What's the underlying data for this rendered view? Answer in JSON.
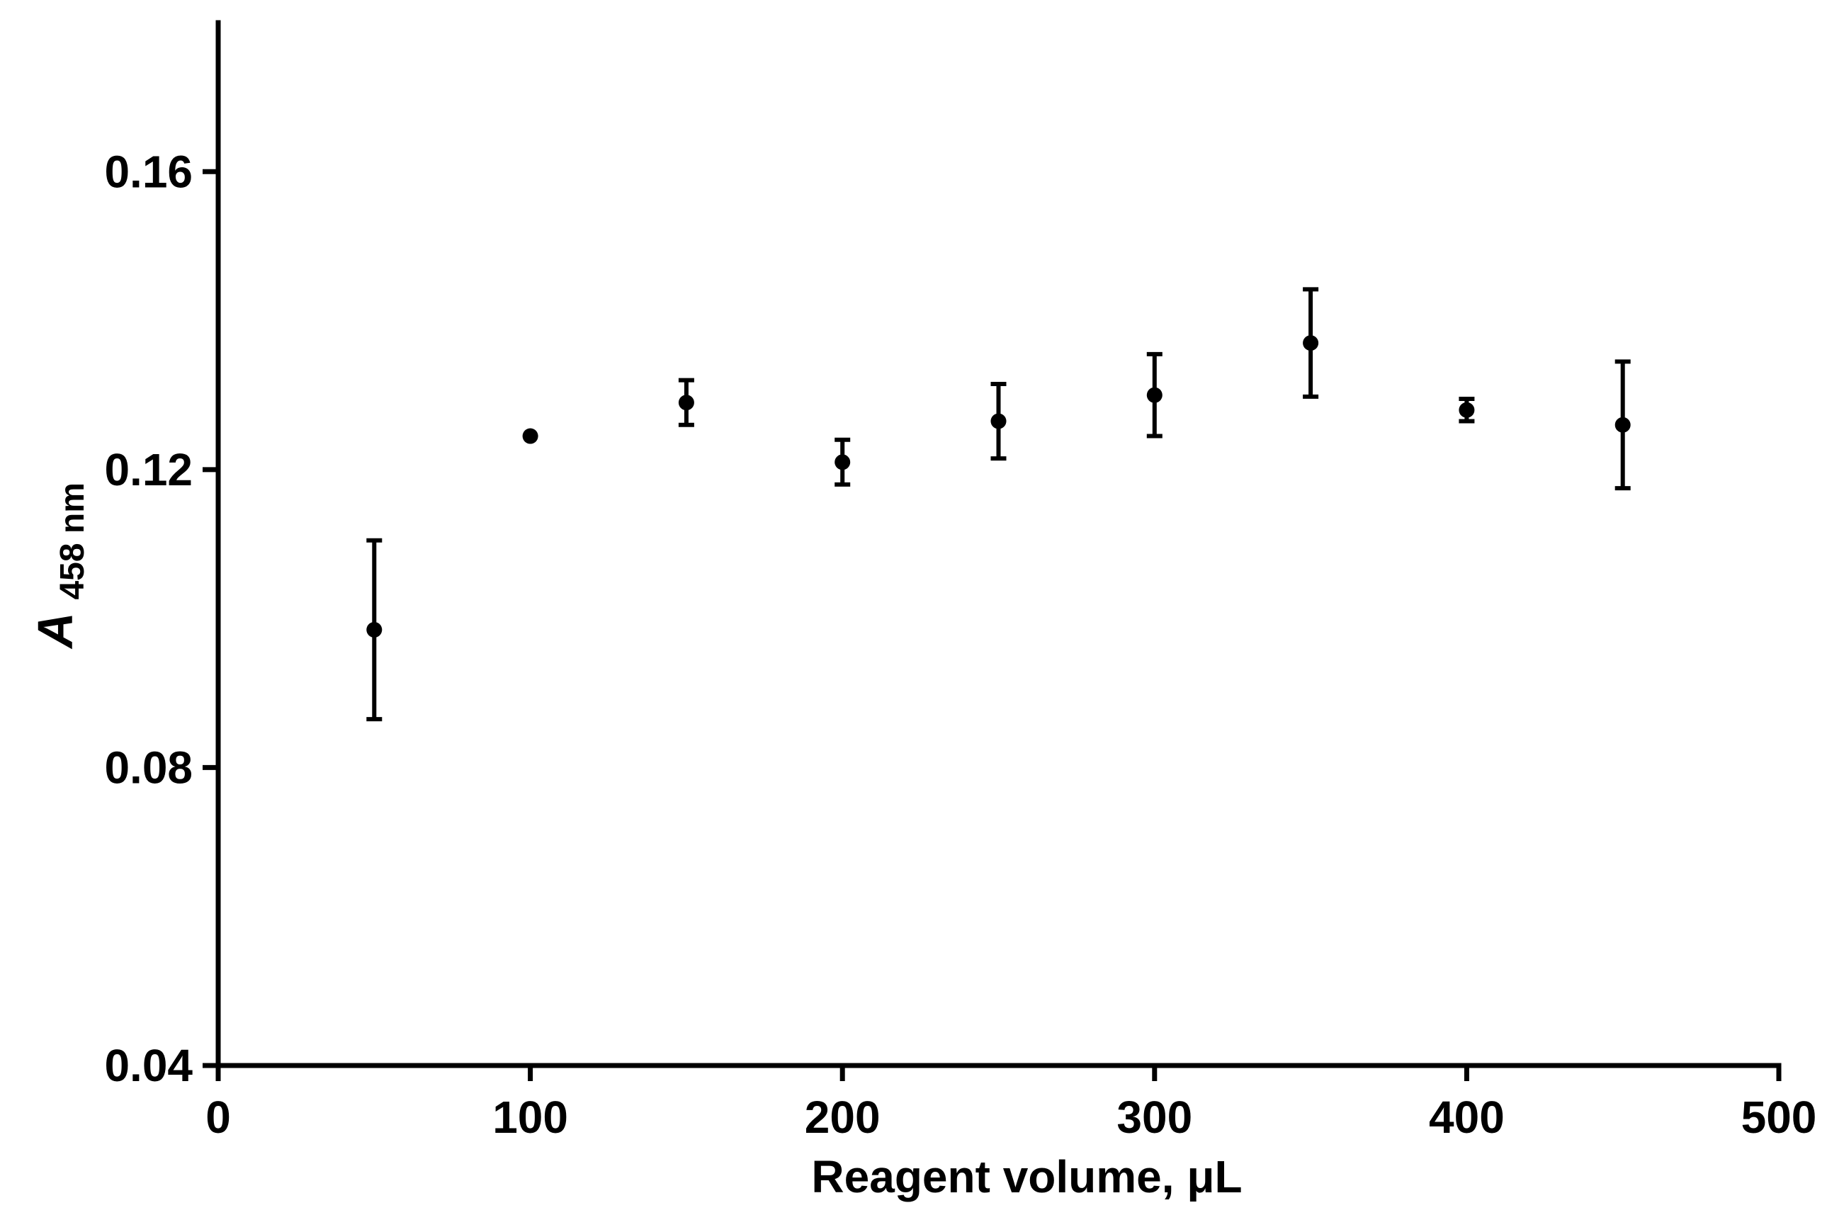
{
  "chart_data": {
    "type": "scatter",
    "xlabel": "Reagent volume, μL",
    "ylabel": {
      "main": "A",
      "subscript": "458 nm"
    },
    "xlim": [
      0,
      500
    ],
    "ylim": [
      0.04,
      0.18
    ],
    "xticks": [
      {
        "value": 0,
        "label": "0"
      },
      {
        "value": 100,
        "label": "100"
      },
      {
        "value": 200,
        "label": "200"
      },
      {
        "value": 300,
        "label": "300"
      },
      {
        "value": 400,
        "label": "400"
      },
      {
        "value": 500,
        "label": "500"
      }
    ],
    "yticks": [
      {
        "value": 0.04,
        "label": "0.04"
      },
      {
        "value": 0.08,
        "label": "0.08"
      },
      {
        "value": 0.12,
        "label": "0.12"
      },
      {
        "value": 0.16,
        "label": "0.16"
      }
    ],
    "grid": false,
    "marker_color": "#000000",
    "points": [
      {
        "x": 50,
        "y": 0.0985,
        "err": 0.012
      },
      {
        "x": 100,
        "y": 0.1245,
        "err": 0.0
      },
      {
        "x": 150,
        "y": 0.129,
        "err": 0.003
      },
      {
        "x": 200,
        "y": 0.121,
        "err": 0.003
      },
      {
        "x": 250,
        "y": 0.1265,
        "err": 0.005
      },
      {
        "x": 300,
        "y": 0.13,
        "err": 0.0055
      },
      {
        "x": 350,
        "y": 0.137,
        "err": 0.0072
      },
      {
        "x": 400,
        "y": 0.128,
        "err": 0.0015
      },
      {
        "x": 450,
        "y": 0.126,
        "err": 0.0085
      }
    ]
  }
}
